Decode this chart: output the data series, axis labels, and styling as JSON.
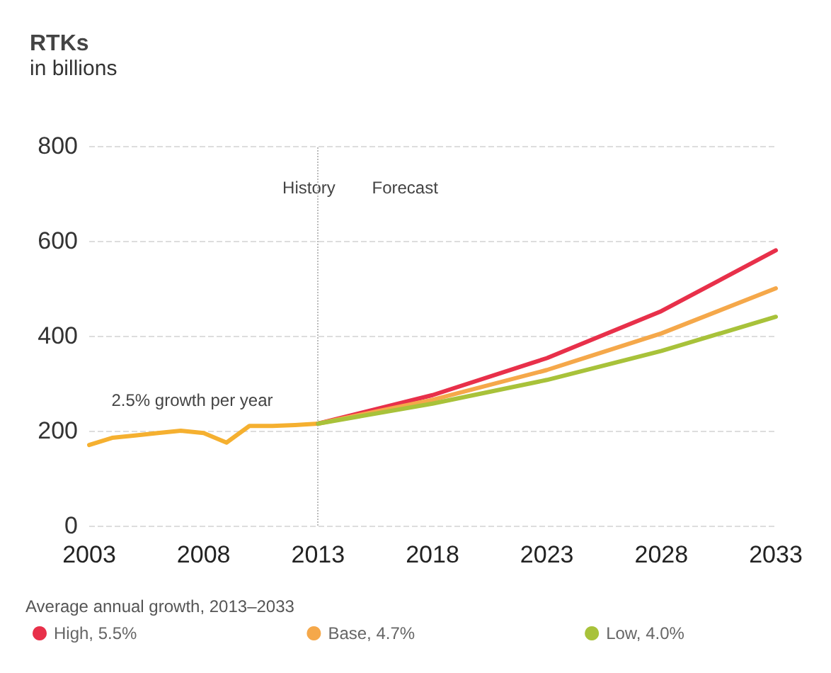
{
  "chart_data": {
    "type": "line",
    "title": "RTKs",
    "subtitle": "in billions",
    "legend_title": "Average annual growth, 2013–2033",
    "series": [
      {
        "color": "#f5b030",
        "x": [
          2003,
          2004,
          2005,
          2006,
          2007,
          2008,
          2009,
          2010,
          2011,
          2012,
          2013
        ],
        "values": [
          170,
          185,
          190,
          195,
          200,
          195,
          175,
          210,
          210,
          212,
          215
        ]
      },
      {
        "name": "High, 5.5%",
        "color": "#e8304a",
        "x": [
          2013,
          2018,
          2023,
          2028,
          2033
        ],
        "values": [
          215,
          275,
          353,
          452,
          580
        ]
      },
      {
        "name": "Base, 4.7%",
        "color": "#f5a84a",
        "x": [
          2013,
          2018,
          2023,
          2028,
          2033
        ],
        "values": [
          215,
          265,
          328,
          405,
          500
        ]
      },
      {
        "name": "Low, 4.0%",
        "color": "#a8c23a",
        "x": [
          2013,
          2018,
          2023,
          2028,
          2033
        ],
        "values": [
          215,
          257,
          307,
          368,
          440
        ]
      }
    ],
    "xlim": [
      2003,
      2033
    ],
    "xticks": [
      2003,
      2008,
      2013,
      2018,
      2023,
      2028,
      2033
    ],
    "ylim": [
      0,
      800
    ],
    "yticks": [
      0,
      200,
      400,
      600,
      800
    ],
    "grid": "y",
    "legend": "bottom",
    "marker": "none",
    "line_style": "solid",
    "ref_lines": [
      {
        "axis": "x",
        "value": 2013,
        "color": "#bbbbbb",
        "line_style": "dotted"
      }
    ],
    "annotations": [
      "History",
      "Forecast",
      "2.5% growth per year"
    ]
  }
}
